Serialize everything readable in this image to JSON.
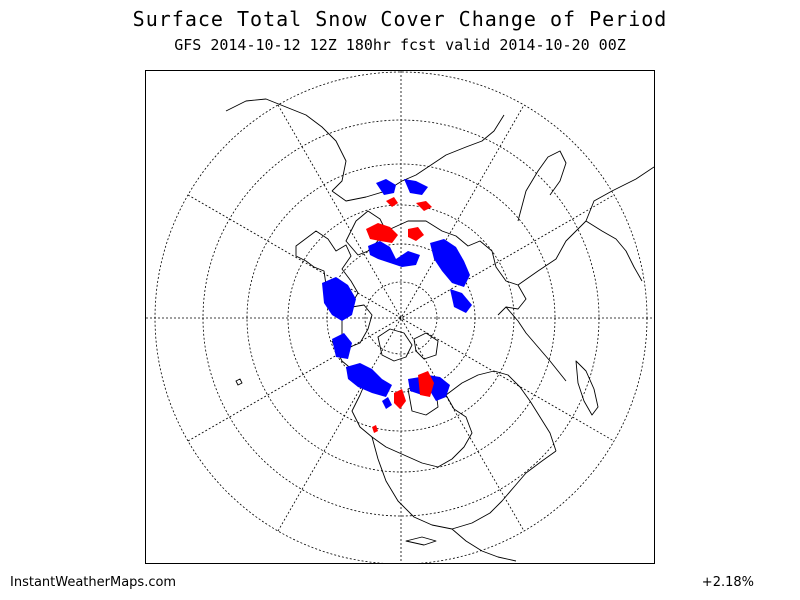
{
  "title": "Surface Total Snow Cover Change of Period",
  "subtitle": "GFS 2014-10-12 12Z 180hr fcst valid 2014-10-20 00Z",
  "map": {
    "projection": "north-polar-stereographic",
    "colors": {
      "snow_gain": "#0000ff",
      "snow_loss": "#ff0000",
      "coastline": "#000000",
      "graticule": "#000000"
    }
  },
  "footer": {
    "site": "InstantWeatherMaps.com",
    "change_percent": "+2.18%"
  }
}
